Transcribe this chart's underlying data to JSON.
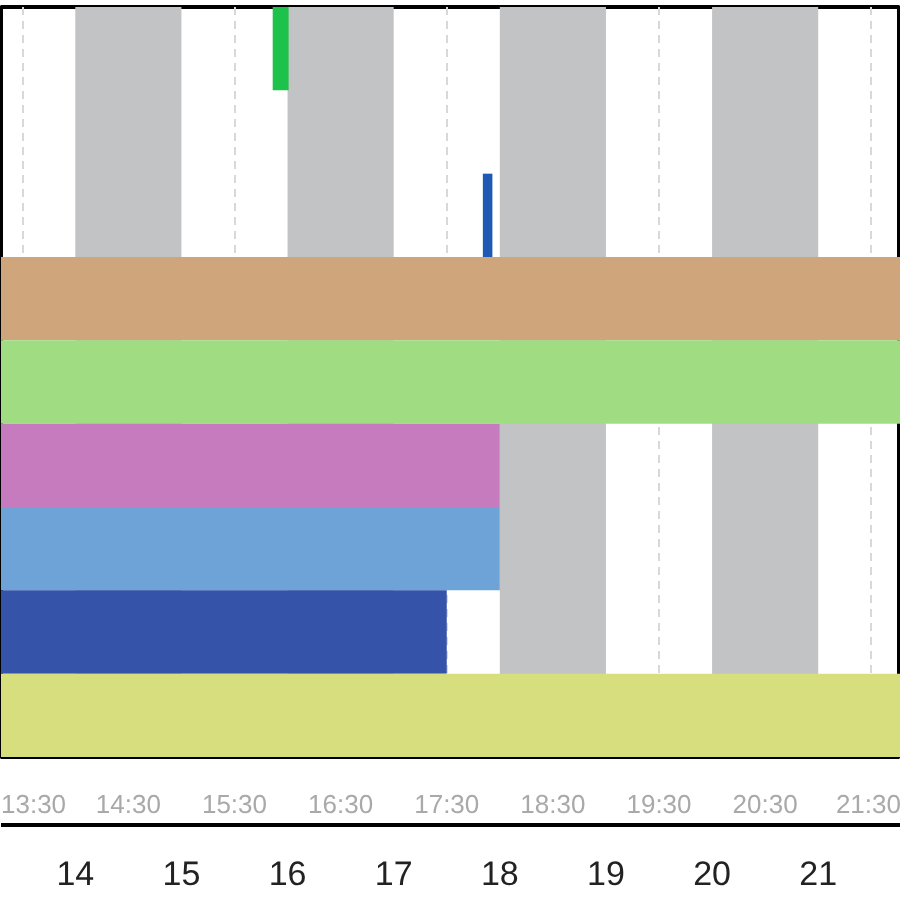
{
  "chart_data": {
    "type": "bar",
    "orientation": "horizontal",
    "categories": [
      null,
      null,
      null,
      null,
      null,
      null,
      null,
      null,
      null
    ],
    "values": [
      0.15,
      null,
      0.09,
      8.48,
      8.48,
      4.7,
      4.7,
      4.2,
      8.48
    ],
    "base": [
      15.86,
      null,
      17.84,
      13.3,
      13.3,
      13.3,
      13.3,
      13.3,
      13.3
    ],
    "colors": [
      "#1cc24a",
      null,
      "#2059b3",
      "#cfa67c",
      "#a0dc82",
      "#c77bbf",
      "#6ea3d8",
      "#3653aa",
      "#d6de7e"
    ],
    "xlim": [
      13.3,
      21.78
    ],
    "xticks": [
      {
        "value": 13.5,
        "label": "13:30"
      },
      {
        "value": 14.5,
        "label": "14:30"
      },
      {
        "value": 15.5,
        "label": "15:30"
      },
      {
        "value": 16.5,
        "label": "16:30"
      },
      {
        "value": 17.5,
        "label": "17:30"
      },
      {
        "value": 18.5,
        "label": "18:30"
      },
      {
        "value": 19.5,
        "label": "19:30"
      },
      {
        "value": 20.5,
        "label": "20:30"
      },
      {
        "value": 21.5,
        "label": "21:30"
      }
    ],
    "x2lim": [
      13.3,
      21.78
    ],
    "x2ticks": [
      14,
      15,
      16,
      17,
      18,
      19,
      20,
      21
    ],
    "bands": [
      {
        "axis": "x",
        "from": 14,
        "to": 15,
        "color": "#c2c3c5"
      },
      {
        "axis": "x",
        "from": 16,
        "to": 17,
        "color": "#c2c3c5"
      },
      {
        "axis": "x",
        "from": 18,
        "to": 19,
        "color": "#c2c3c5"
      },
      {
        "axis": "x",
        "from": 20,
        "to": 21,
        "color": "#c2c3c5"
      }
    ],
    "grid": "x",
    "tick_labels": "x"
  }
}
